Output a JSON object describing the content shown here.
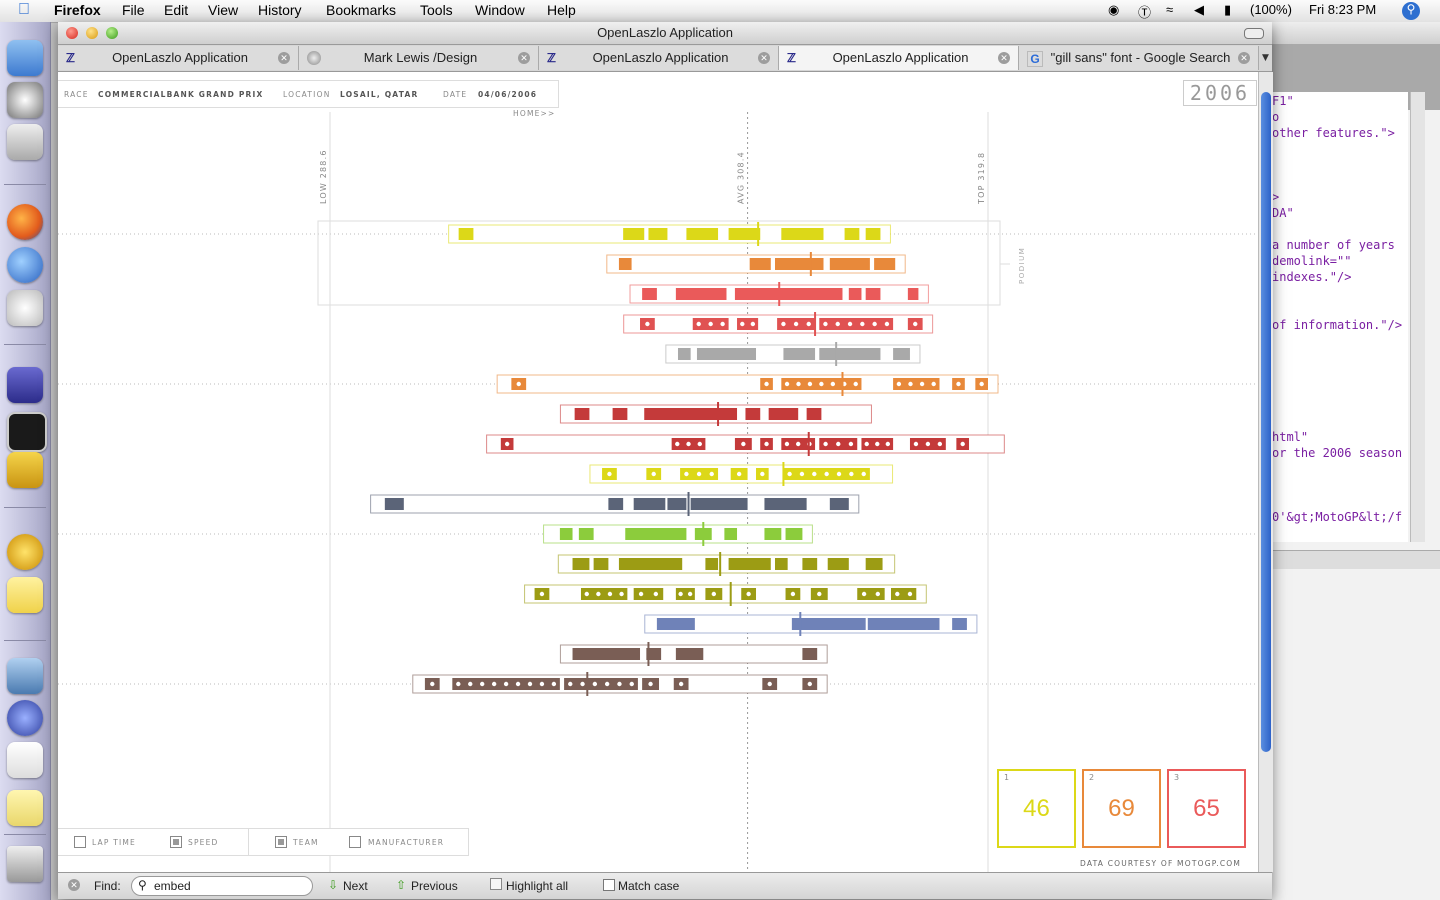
{
  "menubar": {
    "app": "Firefox",
    "items": [
      "File",
      "Edit",
      "View",
      "History",
      "Bookmarks",
      "Tools",
      "Window",
      "Help"
    ],
    "battery": "(100%)",
    "clock": "Fri 8:23 PM"
  },
  "window": {
    "title": "OpenLaszlo Application"
  },
  "tabs": [
    {
      "label": "OpenLaszlo Application",
      "icon": "laszlo-icon",
      "active": false
    },
    {
      "label": "Mark Lewis /Design",
      "icon": "globe-icon",
      "active": false
    },
    {
      "label": "OpenLaszlo Application",
      "icon": "laszlo-icon",
      "active": false
    },
    {
      "label": "OpenLaszlo Application",
      "icon": "laszlo-icon",
      "active": true
    },
    {
      "label": "\"gill sans\" font - Google Search",
      "icon": "google-icon",
      "active": false
    }
  ],
  "race_header": {
    "race_label": "RACE",
    "race_value": "COMMERCIALBANK GRAND PRIX",
    "location_label": "LOCATION",
    "location_value": "LOSAIL, QATAR",
    "date_label": "DATE",
    "date_value": "04/06/2006",
    "home_link": "HOME>>",
    "year": "2006"
  },
  "chart_data": {
    "type": "scatter",
    "x_axis_markers": [
      {
        "label": "LOW",
        "value": 288.6
      },
      {
        "label": "AVG",
        "value": 308.4
      },
      {
        "label": "TOP",
        "value": 319.8
      }
    ],
    "podium_label": "PODIUM",
    "riders": [
      {
        "color": "#dcd818",
        "style": "solid",
        "range": [
          294.7,
          314.5
        ],
        "avg": 308.9,
        "segs": [
          [
            294.7,
            295.4
          ],
          [
            302.5,
            303.5
          ],
          [
            303.7,
            304.6
          ],
          [
            305.5,
            307.0
          ],
          [
            307.5,
            309.0
          ],
          [
            310.0,
            312.0
          ],
          [
            313.0,
            313.7
          ],
          [
            314.0,
            314.7
          ]
        ]
      },
      {
        "color": "#e8893a",
        "style": "solid",
        "range": [
          302.2,
          313.0
        ],
        "avg": 311.4,
        "segs": [
          [
            302.3,
            302.9
          ],
          [
            308.5,
            309.5
          ],
          [
            309.7,
            312.0
          ],
          [
            312.3,
            314.2
          ],
          [
            314.4,
            315.4
          ]
        ]
      },
      {
        "color": "#ea5a5a",
        "style": "solid",
        "range": [
          303.3,
          313.9
        ],
        "avg": 309.9,
        "segs": [
          [
            303.4,
            304.1
          ],
          [
            305.0,
            307.4
          ],
          [
            307.8,
            312.9
          ],
          [
            313.2,
            313.8
          ],
          [
            314.0,
            314.7
          ],
          [
            316.0,
            316.5
          ]
        ]
      },
      {
        "color": "#e05252",
        "style": "dots",
        "range": [
          303.0,
          313.0
        ],
        "avg": 311.6,
        "segs": [
          [
            303.3,
            304.0
          ],
          [
            305.8,
            307.5
          ],
          [
            307.9,
            308.9
          ],
          [
            309.8,
            311.6
          ],
          [
            311.8,
            315.3
          ],
          [
            316.0,
            316.7
          ]
        ]
      },
      {
        "color": "#a9a9a9",
        "style": "solid",
        "range": [
          305.0,
          314.8
        ],
        "avg": 312.6,
        "segs": [
          [
            305.1,
            305.7
          ],
          [
            306.0,
            308.8
          ],
          [
            310.1,
            311.6
          ],
          [
            311.8,
            314.7
          ],
          [
            315.3,
            316.1
          ]
        ]
      },
      {
        "color": "#e8893a",
        "style": "dots",
        "range": [
          297.0,
          319.8
        ],
        "avg": 312.9,
        "segs": [
          [
            297.2,
            297.9
          ],
          [
            309.0,
            309.6
          ],
          [
            310.0,
            313.8
          ],
          [
            315.3,
            317.5
          ],
          [
            318.1,
            318.7
          ],
          [
            319.2,
            319.8
          ]
        ]
      },
      {
        "color": "#c43a3a",
        "style": "solid",
        "range": [
          300.0,
          313.8
        ],
        "avg": 307.0,
        "segs": [
          [
            300.2,
            300.9
          ],
          [
            302.0,
            302.7
          ],
          [
            303.5,
            307.9
          ],
          [
            308.3,
            309.0
          ],
          [
            309.4,
            310.8
          ],
          [
            311.2,
            311.9
          ]
        ]
      },
      {
        "color": "#c43a3a",
        "style": "dots",
        "range": [
          296.5,
          320.1
        ],
        "avg": 311.3,
        "segs": [
          [
            296.7,
            297.3
          ],
          [
            304.8,
            306.4
          ],
          [
            307.8,
            308.6
          ],
          [
            309.0,
            309.6
          ],
          [
            310.0,
            311.6
          ],
          [
            311.8,
            313.6
          ],
          [
            313.8,
            315.3
          ],
          [
            316.1,
            317.8
          ],
          [
            318.3,
            318.9
          ]
        ]
      },
      {
        "color": "#dcd818",
        "style": "dots",
        "range": [
          301.4,
          314.8
        ],
        "avg": 310.1,
        "segs": [
          [
            301.5,
            302.2
          ],
          [
            303.6,
            304.3
          ],
          [
            305.2,
            307.0
          ],
          [
            307.6,
            308.4
          ],
          [
            308.8,
            309.4
          ],
          [
            310.1,
            314.2
          ]
        ]
      },
      {
        "color": "#5b6478",
        "style": "solid",
        "range": [
          291.0,
          313.0
        ],
        "avg": 305.6,
        "segs": [
          [
            291.2,
            292.1
          ],
          [
            301.8,
            302.5
          ],
          [
            303.0,
            304.5
          ],
          [
            304.6,
            305.5
          ],
          [
            305.7,
            308.4
          ],
          [
            309.2,
            311.2
          ],
          [
            312.3,
            313.2
          ]
        ]
      },
      {
        "color": "#8ccc3c",
        "style": "solid",
        "range": [
          299.2,
          308.8
        ],
        "avg": 306.3,
        "segs": [
          [
            299.5,
            300.1
          ],
          [
            300.4,
            301.1
          ],
          [
            302.6,
            305.5
          ],
          [
            305.9,
            306.7
          ],
          [
            307.3,
            307.9
          ],
          [
            309.2,
            310.0
          ],
          [
            310.2,
            311.0
          ]
        ]
      },
      {
        "color": "#9c9c14",
        "style": "solid",
        "range": [
          299.9,
          314.9
        ],
        "avg": 307.1,
        "segs": [
          [
            300.1,
            300.9
          ],
          [
            301.1,
            301.8
          ],
          [
            302.3,
            305.3
          ],
          [
            306.4,
            307.0
          ],
          [
            307.5,
            309.5
          ],
          [
            309.7,
            310.3
          ],
          [
            311.0,
            311.7
          ],
          [
            312.2,
            313.2
          ],
          [
            314.0,
            314.8
          ]
        ]
      },
      {
        "color": "#9c9c14",
        "style": "dots",
        "range": [
          298.3,
          312.4
        ],
        "avg": 307.6,
        "segs": [
          [
            298.3,
            299.0
          ],
          [
            300.5,
            302.7
          ],
          [
            303.0,
            304.4
          ],
          [
            305.0,
            305.9
          ],
          [
            306.4,
            307.2
          ],
          [
            308.1,
            308.8
          ],
          [
            310.2,
            310.9
          ],
          [
            311.4,
            312.2
          ],
          [
            313.6,
            314.9
          ],
          [
            315.2,
            316.4
          ]
        ]
      },
      {
        "color": "#6f82b8",
        "style": "solid",
        "range": [
          304.0,
          317.0
        ],
        "avg": 310.9,
        "segs": [
          [
            304.1,
            305.9
          ],
          [
            310.5,
            314.0
          ],
          [
            314.1,
            317.5
          ],
          [
            318.1,
            318.8
          ]
        ]
      },
      {
        "color": "#7a5e55",
        "style": "solid",
        "range": [
          300.0,
          311.5
        ],
        "avg": 303.7,
        "segs": [
          [
            300.1,
            303.3
          ],
          [
            303.6,
            304.3
          ],
          [
            305.0,
            306.3
          ],
          [
            311.0,
            311.7
          ]
        ]
      },
      {
        "color": "#7a5e55",
        "style": "dots",
        "range": [
          293.0,
          311.4
        ],
        "avg": 300.8,
        "segs": [
          [
            293.1,
            293.8
          ],
          [
            294.4,
            299.5
          ],
          [
            299.7,
            303.2
          ],
          [
            303.4,
            304.2
          ],
          [
            304.9,
            305.6
          ],
          [
            309.1,
            309.8
          ],
          [
            311.0,
            311.7
          ]
        ]
      }
    ]
  },
  "podium_boxes": [
    {
      "rank": "1",
      "value": "46",
      "color": "#dcd818"
    },
    {
      "rank": "2",
      "value": "69",
      "color": "#e8893a"
    },
    {
      "rank": "3",
      "value": "65",
      "color": "#ea5a5a"
    }
  ],
  "legend_filters": [
    {
      "label": "LAP TIME",
      "checked": false
    },
    {
      "label": "SPEED",
      "checked": true
    },
    {
      "label": "TEAM",
      "checked": true
    },
    {
      "label": "MANUFACTURER",
      "checked": false
    }
  ],
  "credit": "DATA COURTESY OF MOTOGP.COM",
  "findbar": {
    "label": "Find:",
    "value": "embed",
    "next": "Next",
    "previous": "Previous",
    "highlight": "Highlight all",
    "match_case": "Match case"
  },
  "background_code": [
    "F1\"",
    "o",
    " other features.\">",
    ">",
    "DA\"",
    " a number of years",
    " demolink=\"\"",
    " indexes.\"/>",
    "of information.\"/>",
    "html\"",
    "or the 2006 season",
    "0'&gt;MotoGP&lt;/f"
  ]
}
